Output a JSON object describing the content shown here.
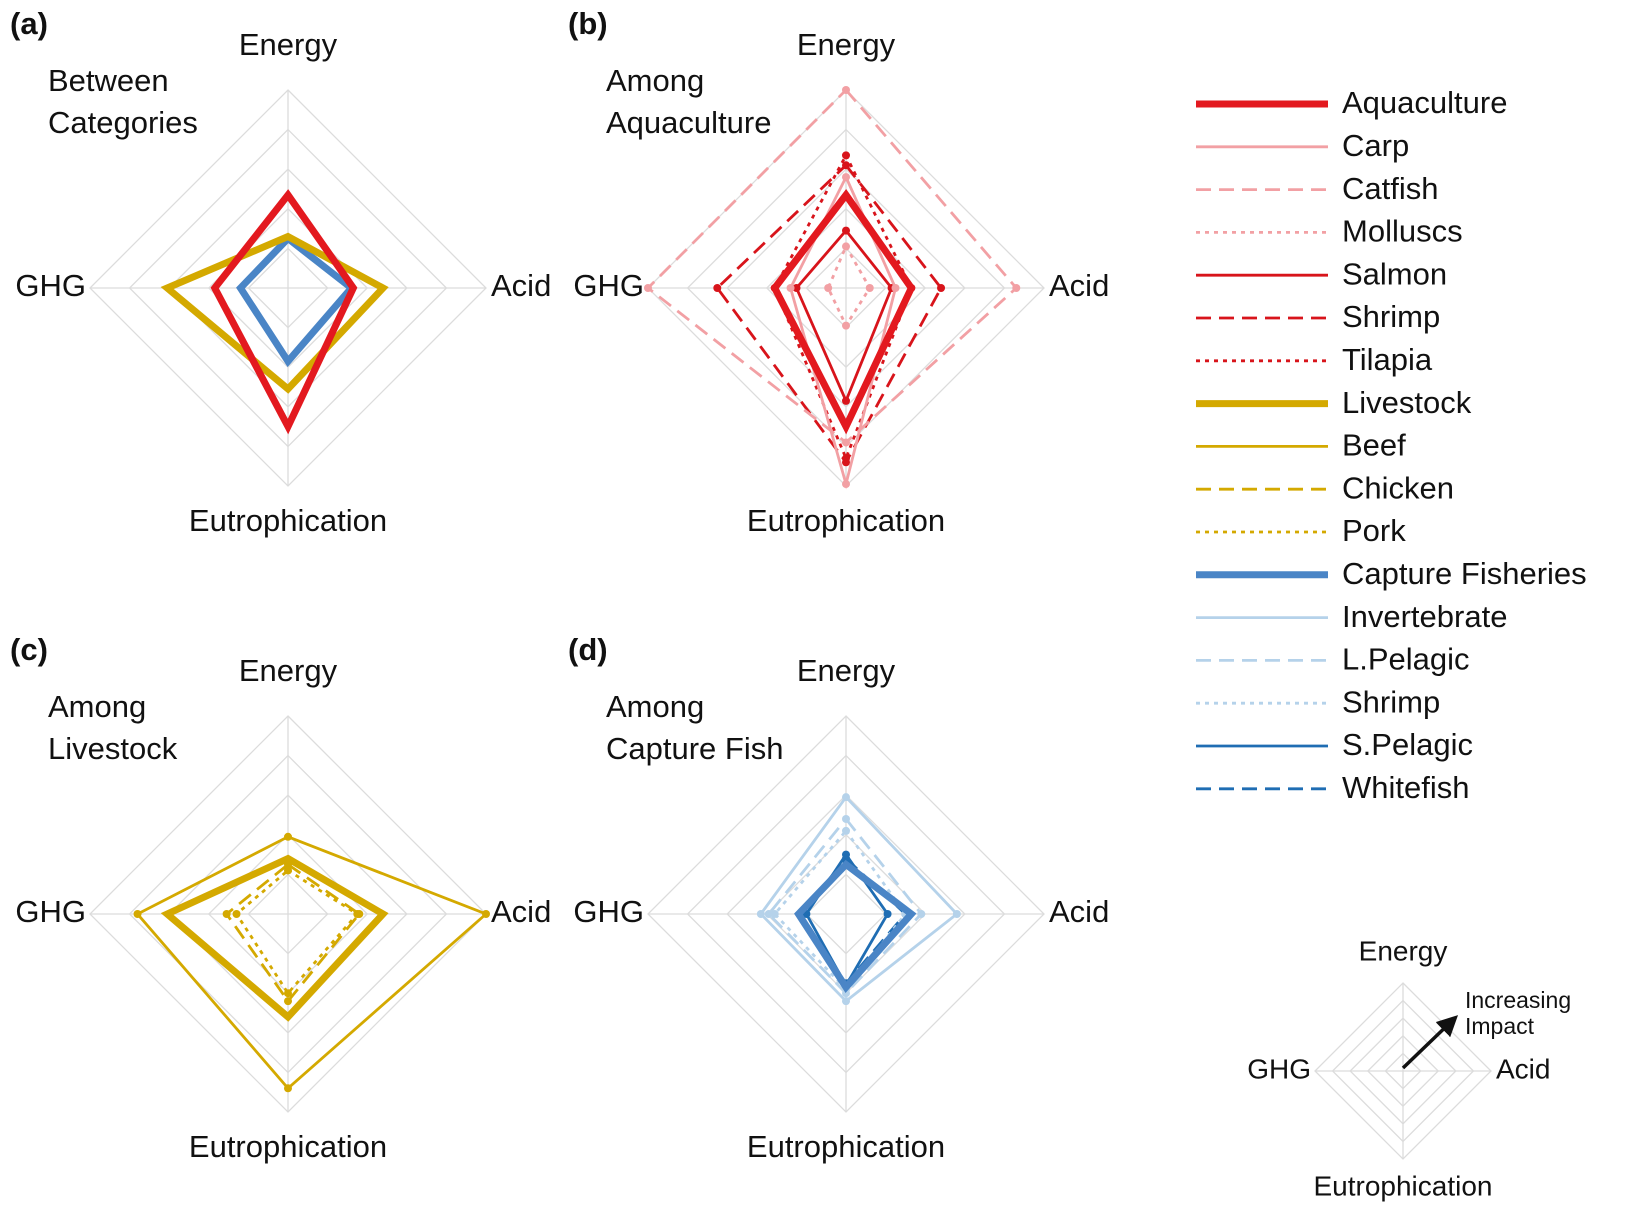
{
  "chart_data": [
    {
      "type": "radar",
      "panel": "(a)",
      "subtitle": [
        "Between",
        "Categories"
      ],
      "axes": [
        "Energy",
        "Acid",
        "Eutrophication",
        "GHG"
      ],
      "rlim": [
        0,
        1
      ],
      "rticks": [
        0.2,
        0.4,
        0.6,
        0.8,
        1.0
      ],
      "series": [
        {
          "name": "Aquaculture",
          "color": "#e3191f",
          "dash": "solid",
          "width": "thick",
          "markers": false,
          "values": [
            0.47,
            0.33,
            0.7,
            0.37
          ]
        },
        {
          "name": "Livestock",
          "color": "#d4a900",
          "dash": "solid",
          "width": "thick",
          "markers": false,
          "values": [
            0.26,
            0.48,
            0.51,
            0.61
          ]
        },
        {
          "name": "Capture Fisheries",
          "color": "#4a85c6",
          "dash": "solid",
          "width": "thick",
          "markers": false,
          "values": [
            0.25,
            0.32,
            0.37,
            0.24
          ]
        }
      ]
    },
    {
      "type": "radar",
      "panel": "(b)",
      "subtitle": [
        "Among",
        "Aquaculture"
      ],
      "axes": [
        "Energy",
        "Acid",
        "Eutrophication",
        "GHG"
      ],
      "rlim": [
        0,
        1
      ],
      "rticks": [
        0.2,
        0.4,
        0.6,
        0.8,
        1.0
      ],
      "series": [
        {
          "name": "Aquaculture",
          "color": "#e3191f",
          "dash": "solid",
          "width": "thick",
          "markers": false,
          "values": [
            0.47,
            0.33,
            0.7,
            0.36
          ]
        },
        {
          "name": "Carp",
          "color": "#f2a0a4",
          "dash": "solid",
          "width": "thin",
          "markers": true,
          "values": [
            0.56,
            0.25,
            0.99,
            0.28
          ]
        },
        {
          "name": "Catfish",
          "color": "#f2a0a4",
          "dash": "dashed",
          "width": "thin",
          "markers": true,
          "values": [
            1.0,
            0.86,
            0.78,
            1.0
          ]
        },
        {
          "name": "Molluscs",
          "color": "#f2a0a4",
          "dash": "dotted",
          "width": "thin",
          "markers": true,
          "values": [
            0.21,
            0.12,
            0.19,
            0.09
          ]
        },
        {
          "name": "Salmon",
          "color": "#d8141b",
          "dash": "solid",
          "width": "thin",
          "markers": true,
          "values": [
            0.29,
            0.23,
            0.57,
            0.25
          ]
        },
        {
          "name": "Shrimp",
          "color": "#d8141b",
          "dash": "dashed",
          "width": "thin",
          "markers": true,
          "values": [
            0.62,
            0.48,
            0.88,
            0.65
          ]
        },
        {
          "name": "Tilapia",
          "color": "#d8141b",
          "dash": "dotted",
          "width": "thin",
          "markers": true,
          "values": [
            0.67,
            0.33,
            0.86,
            0.36
          ]
        }
      ]
    },
    {
      "type": "radar",
      "panel": "(c)",
      "subtitle": [
        "Among",
        "Livestock"
      ],
      "axes": [
        "Energy",
        "Acid",
        "Eutrophication",
        "GHG"
      ],
      "rlim": [
        0,
        1
      ],
      "rticks": [
        0.2,
        0.4,
        0.6,
        0.8,
        1.0
      ],
      "series": [
        {
          "name": "Livestock",
          "color": "#d4a900",
          "dash": "solid",
          "width": "thick",
          "markers": false,
          "values": [
            0.28,
            0.48,
            0.52,
            0.61
          ]
        },
        {
          "name": "Beef",
          "color": "#d4a900",
          "dash": "solid",
          "width": "thin",
          "markers": true,
          "values": [
            0.39,
            1.0,
            0.88,
            0.76
          ]
        },
        {
          "name": "Chicken",
          "color": "#d4a900",
          "dash": "dashed",
          "width": "thin",
          "markers": true,
          "values": [
            0.25,
            0.36,
            0.44,
            0.31
          ]
        },
        {
          "name": "Pork",
          "color": "#d4a900",
          "dash": "dotted",
          "width": "thin",
          "markers": true,
          "values": [
            0.22,
            0.35,
            0.4,
            0.26
          ]
        }
      ]
    },
    {
      "type": "radar",
      "panel": "(d)",
      "subtitle": [
        "Among",
        "Capture Fish"
      ],
      "axes": [
        "Energy",
        "Acid",
        "Eutrophication",
        "GHG"
      ],
      "rlim": [
        0,
        1
      ],
      "rticks": [
        0.2,
        0.4,
        0.6,
        0.8,
        1.0
      ],
      "series": [
        {
          "name": "Capture Fisheries",
          "color": "#4a85c6",
          "dash": "solid",
          "width": "thick",
          "markers": false,
          "values": [
            0.25,
            0.33,
            0.37,
            0.24
          ]
        },
        {
          "name": "Invertebrate",
          "color": "#b5d2ea",
          "dash": "solid",
          "width": "thin",
          "markers": true,
          "values": [
            0.59,
            0.56,
            0.44,
            0.43
          ]
        },
        {
          "name": "L.Pelagic",
          "color": "#b5d2ea",
          "dash": "dashed",
          "width": "thin",
          "markers": true,
          "values": [
            0.48,
            0.38,
            0.4,
            0.39
          ]
        },
        {
          "name": "Shrimp",
          "color": "#b5d2ea",
          "dash": "dotted",
          "width": "thin",
          "markers": true,
          "values": [
            0.42,
            0.3,
            0.38,
            0.36
          ]
        },
        {
          "name": "S.Pelagic",
          "color": "#1f6db3",
          "dash": "solid",
          "width": "thin",
          "markers": true,
          "values": [
            0.3,
            0.21,
            0.36,
            0.2
          ]
        },
        {
          "name": "Whitefish",
          "color": "#1f6db3",
          "dash": "dashed",
          "width": "thin",
          "markers": true,
          "values": [
            0.28,
            0.3,
            0.35,
            0.23
          ]
        }
      ]
    },
    {
      "type": "radar-key",
      "axes": [
        "Energy",
        "Acid",
        "Eutrophication",
        "GHG"
      ],
      "annotation": [
        "Increasing",
        "Impact"
      ],
      "rlim": [
        0,
        1
      ],
      "rticks": [
        0.2,
        0.4,
        0.6,
        0.8,
        1.0
      ]
    }
  ]
}
